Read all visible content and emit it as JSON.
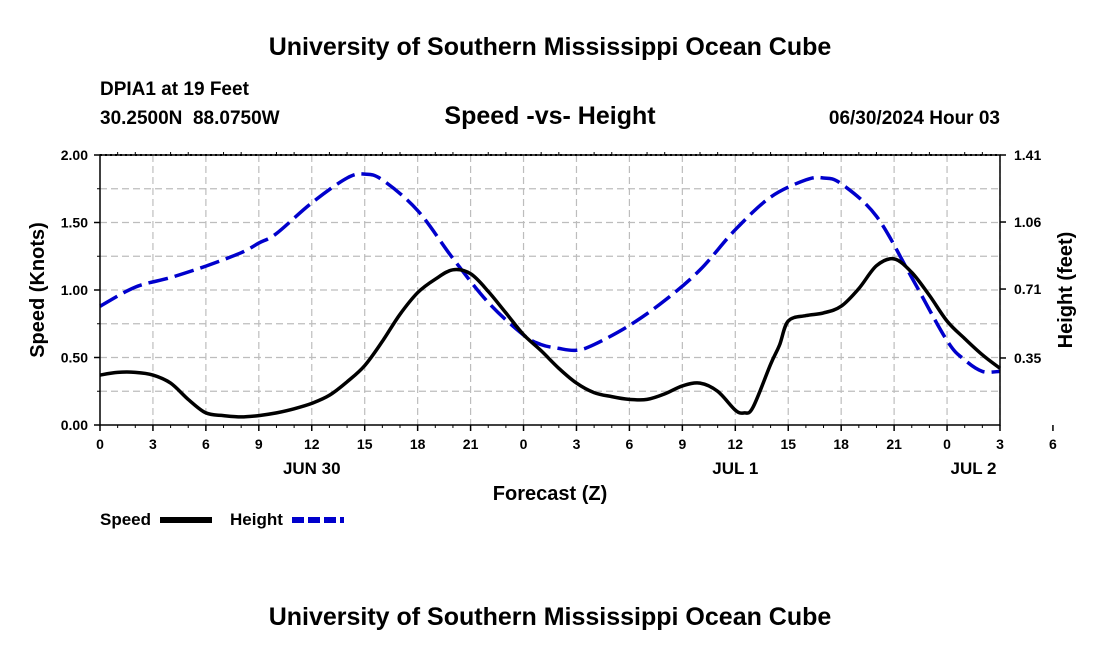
{
  "header": {
    "title": "University of Southern Mississippi Ocean Cube",
    "station": "DPIA1 at 19 Feet",
    "coords": "30.2500N  88.0750W",
    "subtitle": "Speed -vs- Height",
    "datetime": "06/30/2024 Hour 03"
  },
  "footer": {
    "title": "University of Southern Mississippi Ocean Cube"
  },
  "legend": {
    "speed_label": "Speed",
    "height_label": "Height",
    "speed_color": "#000000",
    "height_color": "#0000cc"
  },
  "chart_data": {
    "type": "line",
    "title": "Speed -vs- Height",
    "xlabel": "Forecast (Z)",
    "ylabel": "Speed (Knots)",
    "ylabel_right": "Height (feet)",
    "x_hours_range": [
      0,
      51
    ],
    "ylim": [
      0,
      2.0
    ],
    "ylim_right": [
      0,
      1.41
    ],
    "grid": true,
    "legend_position": "bottom-left",
    "x_tick_labels": [
      "0",
      "3",
      "6",
      "9",
      "12",
      "15",
      "18",
      "21",
      "0",
      "3",
      "6",
      "9",
      "12",
      "15",
      "18",
      "21",
      "0",
      "3",
      "6"
    ],
    "date_labels": [
      {
        "hour": 12,
        "label": "JUN 30"
      },
      {
        "hour": 36,
        "label": "JUL 1"
      },
      {
        "hour": 49.5,
        "label": "JUL 2"
      }
    ],
    "y_ticks_left": [
      "0.00",
      "0.50",
      "1.00",
      "1.50",
      "2.00"
    ],
    "y_ticks_right": [
      "0.35",
      "0.71",
      "1.06",
      "1.41"
    ],
    "series": [
      {
        "name": "Speed",
        "axis": "left",
        "color": "#000000",
        "dash": "solid",
        "x": [
          0,
          1,
          2,
          3,
          4,
          5,
          6,
          7,
          8,
          9,
          10,
          11,
          12,
          13,
          14,
          15,
          16,
          17,
          18,
          19,
          20,
          21,
          22,
          23,
          24,
          25,
          26,
          27,
          28,
          29,
          30,
          31,
          32,
          33,
          34,
          35,
          36,
          36.5,
          37,
          38,
          38.5,
          39,
          40,
          41,
          42,
          43,
          44,
          45,
          46,
          47,
          48,
          49,
          50,
          51
        ],
        "y": [
          0.37,
          0.39,
          0.39,
          0.37,
          0.31,
          0.19,
          0.09,
          0.07,
          0.06,
          0.07,
          0.09,
          0.12,
          0.16,
          0.22,
          0.32,
          0.44,
          0.62,
          0.82,
          0.98,
          1.08,
          1.15,
          1.12,
          0.99,
          0.83,
          0.67,
          0.55,
          0.42,
          0.31,
          0.24,
          0.21,
          0.19,
          0.19,
          0.23,
          0.29,
          0.31,
          0.25,
          0.11,
          0.09,
          0.13,
          0.45,
          0.59,
          0.77,
          0.81,
          0.83,
          0.88,
          1.01,
          1.18,
          1.23,
          1.13,
          0.96,
          0.77,
          0.64,
          0.52,
          0.42
        ]
      },
      {
        "name": "Height",
        "axis": "right",
        "color": "#0000cc",
        "dash": "dashed",
        "x": [
          0,
          2,
          4,
          6,
          8,
          9,
          10,
          12,
          14,
          15,
          16,
          18,
          20,
          22,
          24,
          25,
          26,
          27,
          28,
          30,
          32,
          34,
          36,
          38,
          40,
          41,
          42,
          44,
          46,
          48,
          49,
          50,
          51
        ],
        "y": [
          0.62,
          0.72,
          0.77,
          0.83,
          0.9,
          0.95,
          1.0,
          1.16,
          1.29,
          1.31,
          1.28,
          1.12,
          0.87,
          0.64,
          0.47,
          0.42,
          0.4,
          0.39,
          0.42,
          0.52,
          0.65,
          0.81,
          1.02,
          1.19,
          1.28,
          1.29,
          1.26,
          1.09,
          0.77,
          0.44,
          0.34,
          0.28,
          0.28
        ]
      }
    ]
  }
}
